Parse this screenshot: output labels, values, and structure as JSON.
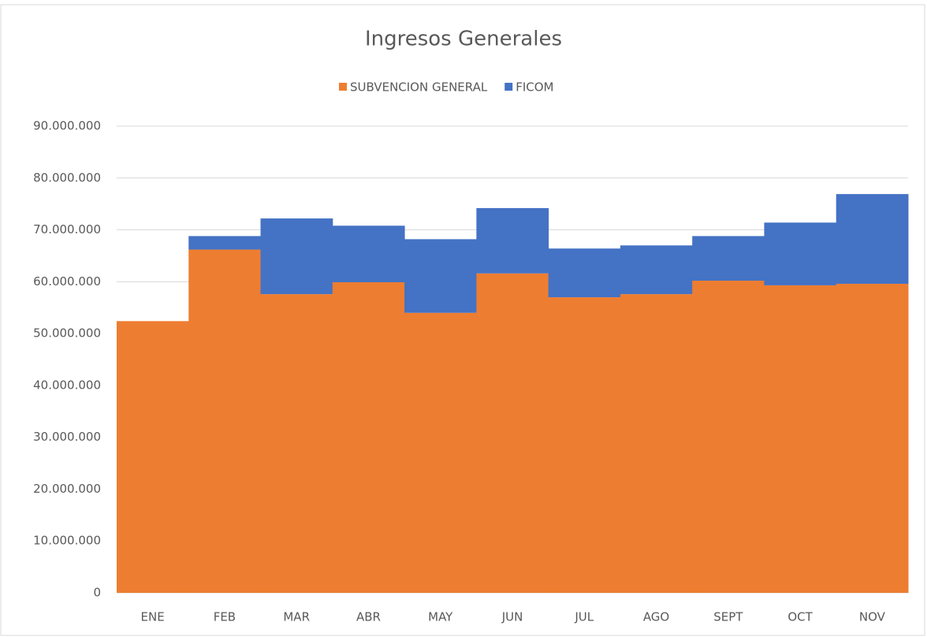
{
  "chart_data": {
    "type": "stacked_bar",
    "title": "Ingresos Generales",
    "categories": [
      "ENE",
      "FEB",
      "MAR",
      "ABR",
      "MAY",
      "JUN",
      "JUL",
      "AGO",
      "SEPT",
      "OCT",
      "NOV"
    ],
    "series": [
      {
        "name": "SUBVENCION GENERAL",
        "color": "#ed7d31",
        "values": [
          52400000,
          66200000,
          57600000,
          59900000,
          54000000,
          61600000,
          57000000,
          57600000,
          60200000,
          59300000,
          59600000
        ]
      },
      {
        "name": "FICOM",
        "color": "#4472c4",
        "values": [
          0,
          2600000,
          14600000,
          10900000,
          14200000,
          12600000,
          9400000,
          9400000,
          8600000,
          12100000,
          17300000
        ]
      }
    ],
    "ylim": [
      0,
      90000000
    ],
    "yticks": [
      0,
      {
        "value": 10000000,
        "label": "10.000.000"
      },
      {
        "value": 20000000,
        "label": "20.000.000"
      },
      {
        "value": 30000000,
        "label": "30.000.000"
      },
      {
        "value": 40000000,
        "label": "40.000.000"
      },
      {
        "value": 50000000,
        "label": "50.000.000"
      },
      {
        "value": 60000000,
        "label": "60.000.000"
      },
      {
        "value": 70000000,
        "label": "70.000.000"
      },
      {
        "value": 80000000,
        "label": "80.000.000"
      },
      {
        "value": 90000000,
        "label": "90.000.000"
      }
    ],
    "grid": true,
    "legend": "top"
  }
}
